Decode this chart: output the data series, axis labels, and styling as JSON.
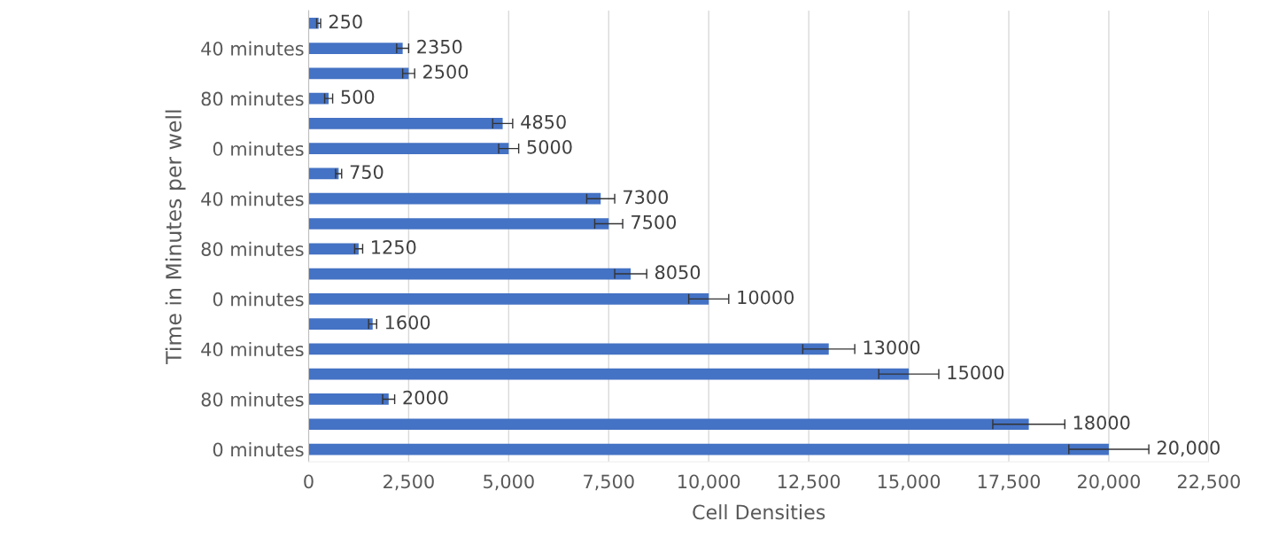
{
  "chart_data": {
    "type": "bar",
    "orientation": "horizontal",
    "ylabel": "Time in Minutes per well",
    "xlabel": "Cell Densities",
    "categories": [
      null,
      "40 minutes",
      null,
      "80 minutes",
      null,
      "0 minutes",
      null,
      "40 minutes",
      null,
      "80 minutes",
      null,
      "0 minutes",
      null,
      "40 minutes",
      null,
      "80 minutes",
      null,
      "0 minutes"
    ],
    "values": [
      250,
      2350,
      2500,
      500,
      4850,
      5000,
      750,
      7300,
      7500,
      1250,
      8050,
      10000,
      1600,
      13000,
      15000,
      2000,
      18000,
      20000
    ],
    "errors": [
      50,
      150,
      150,
      100,
      250,
      250,
      75,
      350,
      350,
      100,
      400,
      500,
      100,
      650,
      750,
      150,
      900,
      1000
    ],
    "value_labels": [
      "250",
      "2350",
      "2500",
      "500",
      "4850",
      "5000",
      "750",
      "7300",
      "7500",
      "1250",
      "8050",
      "10000",
      "1600",
      "13000",
      "15000",
      "2000",
      "18000",
      "20,000"
    ],
    "color": "#4472c4",
    "xlim": [
      0,
      22500
    ],
    "xticks": [
      0,
      {
        "value": 2500,
        "label": "2,500"
      },
      {
        "value": 5000,
        "label": "5,000"
      },
      {
        "value": 7500,
        "label": "7,500"
      },
      {
        "value": 10000,
        "label": "10,000"
      },
      {
        "value": 12500,
        "label": "12,500"
      },
      {
        "value": 15000,
        "label": "15,000"
      },
      {
        "value": 17500,
        "label": "17,500"
      },
      {
        "value": 20000,
        "label": "20,000"
      },
      {
        "value": 22500,
        "label": "22,500"
      }
    ],
    "grid": "x",
    "legend": false
  }
}
